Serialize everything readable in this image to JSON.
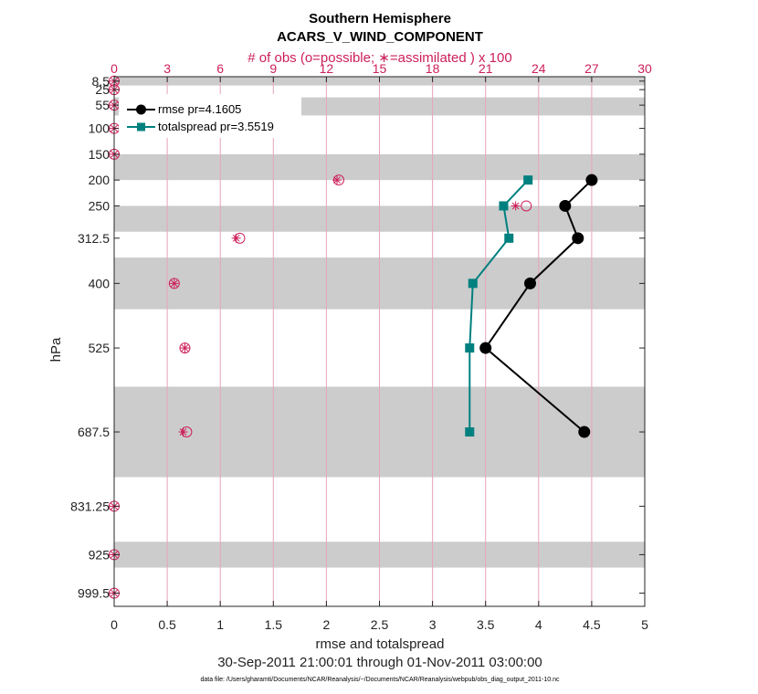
{
  "chart_data": {
    "type": "line",
    "title": "Southern Hemisphere",
    "subtitle": "ACARS_V_WIND_COMPONENT",
    "top_axis_label": "# of obs (o=possible; ∗=assimilated ) x 100",
    "xlabel": "rmse and totalspread",
    "ylabel": "hPa",
    "date_range": "30-Sep-2011 21:00:01 through 01-Nov-2011 03:00:00",
    "footnote": "data file: /Users/gharamti/Documents/NCAR/Reanalysis/~/Documents/NCAR/Reanalysis/webpub/obs_diag_output_2011-10.nc",
    "xlim": [
      0,
      5
    ],
    "x_ticks": [
      "0",
      "0.5",
      "1",
      "1.5",
      "2",
      "2.5",
      "3",
      "3.5",
      "4",
      "4.5",
      "5"
    ],
    "top_xlim": [
      0,
      30
    ],
    "top_ticks": [
      "0",
      "3",
      "6",
      "9",
      "12",
      "15",
      "18",
      "21",
      "24",
      "27",
      "30"
    ],
    "levels": [
      8.5,
      25,
      55,
      100,
      150,
      200,
      250,
      312.5,
      400,
      525,
      687.5,
      831.25,
      925,
      999.5
    ],
    "level_labels": [
      "8.5",
      "25",
      "55",
      "100",
      "150",
      "200",
      "250",
      "312.5",
      "400",
      "525",
      "687.5",
      "831.25",
      "925",
      "999.5"
    ],
    "series": [
      {
        "name": "rmse",
        "legend": "rmse pr=4.1605",
        "color": "#000000",
        "marker": "circle",
        "points": [
          {
            "level": 200,
            "value": 4.5
          },
          {
            "level": 250,
            "value": 4.25
          },
          {
            "level": 312.5,
            "value": 4.37
          },
          {
            "level": 400,
            "value": 3.92
          },
          {
            "level": 525,
            "value": 3.5
          },
          {
            "level": 687.5,
            "value": 4.43
          }
        ]
      },
      {
        "name": "totalspread",
        "legend": "totalspread pr=3.5519",
        "color": "#00807f",
        "marker": "square",
        "points": [
          {
            "level": 200,
            "value": 3.9
          },
          {
            "level": 250,
            "value": 3.67
          },
          {
            "level": 312.5,
            "value": 3.72
          },
          {
            "level": 400,
            "value": 3.38
          },
          {
            "level": 525,
            "value": 3.35
          },
          {
            "level": 687.5,
            "value": 3.35
          }
        ]
      }
    ],
    "obs_counts": [
      {
        "level": 8.5,
        "possible": 0,
        "assimilated": 0
      },
      {
        "level": 25,
        "possible": 0,
        "assimilated": 0
      },
      {
        "level": 55,
        "possible": 0,
        "assimilated": 0
      },
      {
        "level": 100,
        "possible": 0,
        "assimilated": 0
      },
      {
        "level": 150,
        "possible": 0,
        "assimilated": 0
      },
      {
        "level": 200,
        "possible": 12.7,
        "assimilated": 12.6
      },
      {
        "level": 250,
        "possible": 23.3,
        "assimilated": 22.7
      },
      {
        "level": 312.5,
        "possible": 7.1,
        "assimilated": 6.9
      },
      {
        "level": 400,
        "possible": 3.4,
        "assimilated": 3.4
      },
      {
        "level": 525,
        "possible": 4.0,
        "assimilated": 4.0
      },
      {
        "level": 687.5,
        "possible": 4.1,
        "assimilated": 3.9
      },
      {
        "level": 831.25,
        "possible": 0,
        "assimilated": 0
      },
      {
        "level": 925,
        "possible": 0,
        "assimilated": 0
      },
      {
        "level": 999.5,
        "possible": 0,
        "assimilated": 0
      }
    ],
    "shaded_bands": [
      [
        0,
        17
      ],
      [
        40,
        75
      ],
      [
        150,
        200
      ],
      [
        250,
        300
      ],
      [
        350,
        450
      ],
      [
        600,
        775
      ],
      [
        900,
        950
      ]
    ],
    "colors": {
      "obs": "#cc1f5a",
      "band": "#cccccc",
      "grid": "#e7a4bd"
    }
  }
}
